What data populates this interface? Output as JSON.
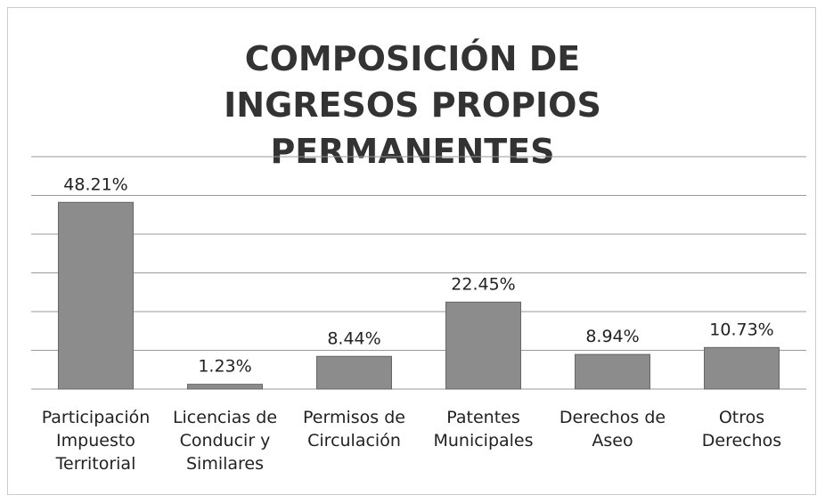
{
  "chart_data": {
    "type": "bar",
    "title": "COMPOSICIÓN DE INGRESOS PROPIOS PERMANENTES",
    "categories": [
      "Participación Impuesto Territorial",
      "Licencias de Conducir y Similares",
      "Permisos de Circulación",
      "Patentes Municipales",
      "Derechos de Aseo",
      "Otros Derechos"
    ],
    "values": [
      48.21,
      1.23,
      8.44,
      22.45,
      8.94,
      10.73
    ],
    "value_labels": [
      "48.21%",
      "1.23%",
      "8.44%",
      "22.45%",
      "8.94%",
      "10.73%"
    ],
    "color": "#8c8c8c",
    "ylim": [
      0,
      60
    ],
    "yticks": [
      0,
      10,
      20,
      30,
      40,
      50,
      60
    ],
    "grid": true
  }
}
